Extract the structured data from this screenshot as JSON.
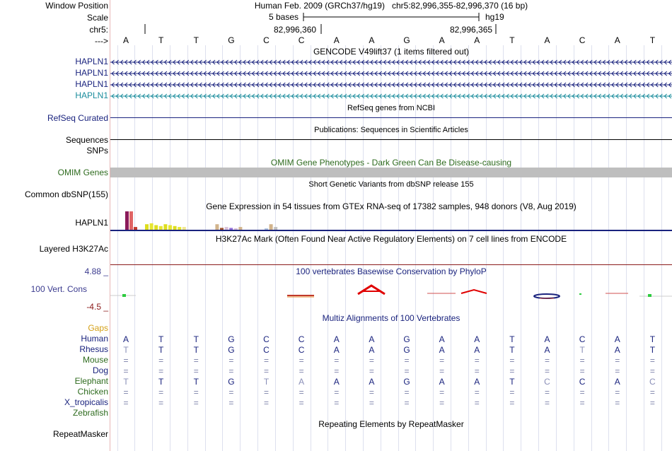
{
  "header": {
    "window_position_label": "Window Position",
    "scale_label": "Scale",
    "chrom_label": "chr5:",
    "arrow_label": "--->",
    "title": "Human Feb. 2009 (GRCh37/hg19)   chr5:82,996,355-82,996,370 (16 bp)",
    "scale_text": "5 bases",
    "assembly": "hg19",
    "pos1": "82,996,360",
    "pos2": "82,996,365"
  },
  "sequence": [
    "A",
    "T",
    "T",
    "G",
    "C",
    "C",
    "A",
    "A",
    "G",
    "A",
    "A",
    "T",
    "A",
    "C",
    "A",
    "T"
  ],
  "tracks": {
    "gencode_title": "GENCODE V49lift37 (1 items filtered out)",
    "hapln_labels": [
      "HAPLN1",
      "HAPLN1",
      "HAPLN1",
      "HAPLN1"
    ],
    "refseq_title": "RefSeq genes from NCBI",
    "refseq_label": "RefSeq Curated",
    "pubs_title": "Publications: Sequences in Scientific Articles",
    "sequences_label": "Sequences",
    "snps_label": "SNPs",
    "omim_title": "OMIM Gene Phenotypes - Dark Green Can Be Disease-causing",
    "omim_label": "OMIM Genes",
    "dbsnp_title": "Short Genetic Variants from dbSNP release 155",
    "dbsnp_label": "Common dbSNP(155)",
    "gtex_title": "Gene Expression in 54 tissues from GTEx RNA-seq of 17382 samples, 948 donors (V8, Aug 2019)",
    "gtex_label": "HAPLN1",
    "h3k_title": "H3K27Ac Mark (Often Found Near Active Regulatory Elements) on 7 cell lines from ENCODE",
    "h3k_label": "Layered H3K27Ac",
    "cons_title": "100 vertebrates Basewise Conservation by PhyloP",
    "cons_label": "100 Vert. Cons",
    "cons_max": "4.88 _",
    "cons_min": "-4.5 _",
    "multiz_title": "Multiz Alignments of 100 Vertebrates",
    "repeat_title": "Repeating Elements by RepeatMasker",
    "repeat_label": "RepeatMasker"
  },
  "gtex_bars": [
    {
      "color": "#8b1a5a",
      "value": 1.0
    },
    {
      "color": "#e06464",
      "value": 1.0
    },
    {
      "color": "#c0392b",
      "value": 0.15
    },
    {
      "color": "#dede1e",
      "value": 0.3
    },
    {
      "color": "#e6e632",
      "value": 0.35
    },
    {
      "color": "#dede1e",
      "value": 0.25
    },
    {
      "color": "#e6e632",
      "value": 0.2
    },
    {
      "color": "#dede1e",
      "value": 0.3
    },
    {
      "color": "#e6e632",
      "value": 0.25
    },
    {
      "color": "#dede1e",
      "value": 0.2
    },
    {
      "color": "#e6e632",
      "value": 0.15
    },
    {
      "color": "#f0e68c",
      "value": 0.15
    },
    {
      "color": "#d2b48c",
      "value": 0.3
    },
    {
      "color": "#a0522d",
      "value": 0.1
    },
    {
      "color": "#d8bfd8",
      "value": 0.15
    },
    {
      "color": "#9370db",
      "value": 0.1
    },
    {
      "color": "#d8bfd8",
      "value": 0.08
    },
    {
      "color": "#d2b48c",
      "value": 0.15
    },
    {
      "color": "#b0c4de",
      "value": 0.05
    },
    {
      "color": "#d2b48c",
      "value": 0.3
    },
    {
      "color": "#c0c0c0",
      "value": 0.15
    }
  ],
  "alignment": {
    "species": [
      {
        "name": "Gaps",
        "color": "#d4a017"
      },
      {
        "name": "Human",
        "color": "#1a237e"
      },
      {
        "name": "Rhesus",
        "color": "#1a237e"
      },
      {
        "name": "Mouse",
        "color": "#2e6b1e"
      },
      {
        "name": "Dog",
        "color": "#1a237e"
      },
      {
        "name": "Elephant",
        "color": "#2e6b1e"
      },
      {
        "name": "Chicken",
        "color": "#2e6b1e"
      },
      {
        "name": "X_tropicalis",
        "color": "#1a237e"
      },
      {
        "name": "Zebrafish",
        "color": "#2e6b1e"
      }
    ],
    "rows": [
      [],
      [
        "A",
        "T",
        "T",
        "G",
        "C",
        "C",
        "A",
        "A",
        "G",
        "A",
        "A",
        "T",
        "A",
        "C",
        "A",
        "T"
      ],
      [
        "T",
        "T",
        "T",
        "G",
        "C",
        "C",
        "A",
        "A",
        "G",
        "A",
        "A",
        "T",
        "A",
        "T",
        "A",
        "T"
      ],
      [
        "=",
        "=",
        "=",
        "=",
        "=",
        "=",
        "=",
        "=",
        "=",
        "=",
        "=",
        "=",
        "=",
        "=",
        "=",
        "="
      ],
      [
        "=",
        "=",
        "=",
        "=",
        "=",
        "=",
        "=",
        "=",
        "=",
        "=",
        "=",
        "=",
        "=",
        "=",
        "=",
        "="
      ],
      [
        "T",
        "T",
        "T",
        "G",
        "T",
        "A",
        "A",
        "A",
        "G",
        "A",
        "A",
        "T",
        "C",
        "C",
        "A",
        "C"
      ],
      [
        "=",
        "=",
        "=",
        "=",
        "=",
        "=",
        "=",
        "=",
        "=",
        "=",
        "=",
        "=",
        "=",
        "=",
        "=",
        "="
      ],
      [
        "=",
        "=",
        "=",
        "=",
        "=",
        "=",
        "=",
        "=",
        "=",
        "=",
        "=",
        "=",
        "=",
        "=",
        "=",
        "="
      ],
      []
    ],
    "faded": [
      [],
      [],
      [
        0,
        13
      ],
      [],
      [],
      [
        0,
        4,
        5,
        12,
        15
      ],
      [],
      [],
      []
    ]
  },
  "colors": {
    "navy": "#1a237e",
    "green": "#2e6b1e",
    "teal": "#1a8c9c",
    "omim": "#bebebe",
    "h3k_line": "#8b1a1a",
    "cons_max": "#3b3b8f",
    "cons_min": "#8b1a1a"
  }
}
